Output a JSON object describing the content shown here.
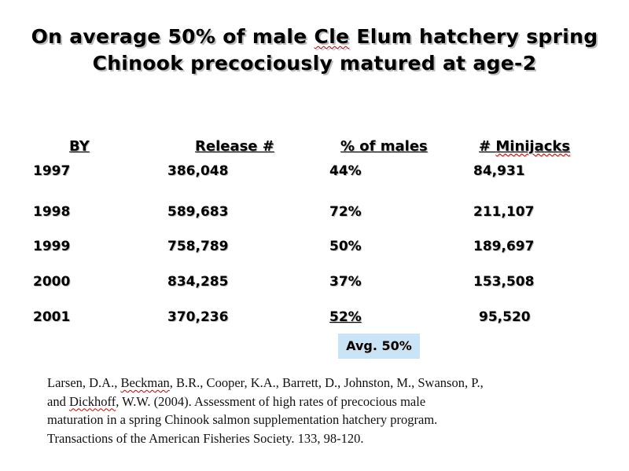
{
  "title": {
    "line1_a": "On average 50% of male ",
    "line1_b": "Cle",
    "line1_c": " Elum hatchery spring",
    "line2": "Chinook precociously matured at age-2"
  },
  "table": {
    "headers": {
      "by": "BY",
      "release": "Release #",
      "pct": "% of males",
      "minijacks_a": "# ",
      "minijacks_b": "Minijacks"
    },
    "rows": [
      {
        "by": "1997",
        "release": "386,048",
        "pct": "44%",
        "minijacks": "84,931"
      },
      {
        "by": "1998",
        "release": "589,683",
        "pct": "72%",
        "minijacks": "211,107"
      },
      {
        "by": "1999",
        "release": "758,789",
        "pct": "50%",
        "minijacks": "189,697"
      },
      {
        "by": "2000",
        "release": "834,285",
        "pct": "37%",
        "minijacks": "153,508"
      },
      {
        "by": "2001",
        "release": "370,236",
        "pct": "52%",
        "minijacks": "95,520"
      }
    ]
  },
  "average": "Avg. 50%",
  "citation": {
    "l1_a": "Larsen, D.A., ",
    "l1_b": "Beckman",
    "l1_c": ", B.R., Cooper, K.A., Barrett, D., Johnston, M., Swanson, P.,",
    "l2_a": "and ",
    "l2_b": "Dickhoff",
    "l2_c": ", W.W.  (2004).  Assessment of high rates of precocious male",
    "l3": "maturation in a spring Chinook salmon supplementation hatchery program.",
    "l4": "Transactions of the American Fisheries Society.  133, 98-120."
  },
  "colors": {
    "avg_box": "#c9e3f7",
    "spellcheck": "#cc0000"
  }
}
